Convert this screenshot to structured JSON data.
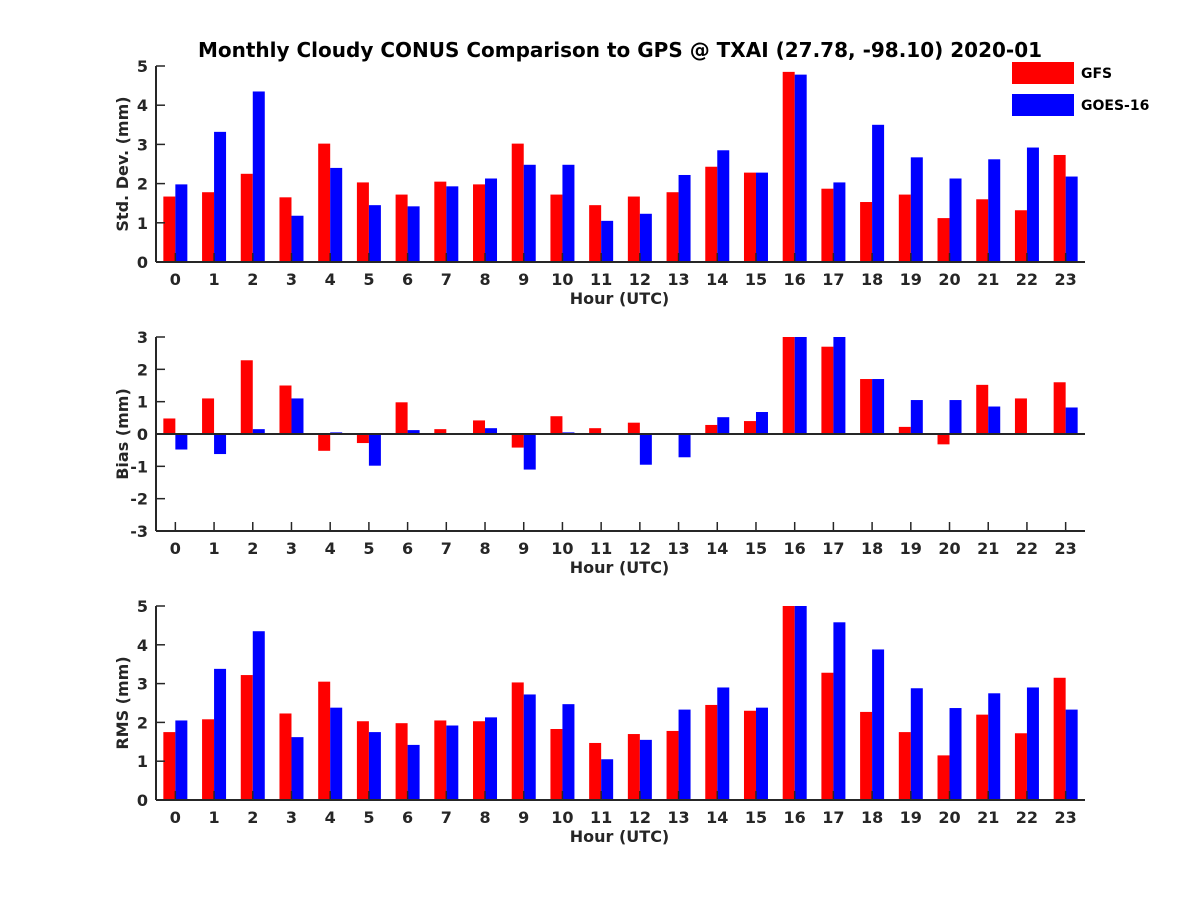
{
  "figure": {
    "title": "Monthly Cloudy CONUS Comparison to GPS @ TXAI (27.78, -98.10) 2020-01"
  },
  "legend": {
    "items": [
      {
        "label": "GFS",
        "color": "#ff0000"
      },
      {
        "label": "GOES-16",
        "color": "#0000ff"
      }
    ]
  },
  "chart_data": [
    {
      "type": "bar",
      "title": "Monthly Cloudy CONUS Comparison to GPS @ TXAI (27.78, -98.10) 2020-01",
      "xlabel": "Hour (UTC)",
      "ylabel": "Std. Dev. (mm)",
      "ylim": [
        0,
        5
      ],
      "yticks": [
        0,
        1,
        2,
        3,
        4,
        5
      ],
      "categories": [
        "0",
        "1",
        "2",
        "3",
        "4",
        "5",
        "6",
        "7",
        "8",
        "9",
        "10",
        "11",
        "12",
        "13",
        "14",
        "15",
        "16",
        "17",
        "18",
        "19",
        "20",
        "21",
        "22",
        "23"
      ],
      "series": [
        {
          "name": "GFS",
          "color": "#ff0000",
          "values": [
            1.67,
            1.78,
            2.25,
            1.65,
            3.02,
            2.03,
            1.72,
            2.05,
            1.98,
            3.02,
            1.72,
            1.45,
            1.67,
            1.78,
            2.43,
            2.28,
            4.85,
            1.87,
            1.53,
            1.72,
            1.12,
            1.6,
            1.32,
            2.73
          ]
        },
        {
          "name": "GOES-16",
          "color": "#0000ff",
          "values": [
            1.98,
            3.32,
            4.35,
            1.18,
            2.4,
            1.45,
            1.42,
            1.93,
            2.13,
            2.48,
            2.48,
            1.05,
            1.23,
            2.22,
            2.85,
            2.28,
            4.78,
            2.03,
            3.5,
            2.67,
            2.13,
            2.62,
            2.92,
            2.18
          ]
        }
      ]
    },
    {
      "type": "bar",
      "xlabel": "Hour (UTC)",
      "ylabel": "Bias (mm)",
      "ylim": [
        -3,
        3
      ],
      "yticks": [
        -3,
        -2,
        -1,
        0,
        1,
        2,
        3
      ],
      "categories": [
        "0",
        "1",
        "2",
        "3",
        "4",
        "5",
        "6",
        "7",
        "8",
        "9",
        "10",
        "11",
        "12",
        "13",
        "14",
        "15",
        "16",
        "17",
        "18",
        "19",
        "20",
        "21",
        "22",
        "23"
      ],
      "series": [
        {
          "name": "GFS",
          "color": "#ff0000",
          "values": [
            0.48,
            1.1,
            2.28,
            1.5,
            -0.52,
            -0.28,
            0.98,
            0.15,
            0.42,
            -0.42,
            0.55,
            0.18,
            0.35,
            0.0,
            0.28,
            0.4,
            3.0,
            2.7,
            1.7,
            0.22,
            -0.32,
            1.52,
            1.1,
            1.6
          ]
        },
        {
          "name": "GOES-16",
          "color": "#0000ff",
          "values": [
            -0.48,
            -0.62,
            0.15,
            1.1,
            0.05,
            -0.98,
            0.12,
            0.0,
            0.18,
            -1.1,
            0.05,
            0.0,
            -0.95,
            -0.72,
            0.52,
            0.68,
            3.0,
            3.0,
            1.7,
            1.05,
            1.05,
            0.85,
            0.03,
            0.82
          ]
        }
      ]
    },
    {
      "type": "bar",
      "xlabel": "Hour (UTC)",
      "ylabel": "RMS (mm)",
      "ylim": [
        0,
        5
      ],
      "yticks": [
        0,
        1,
        2,
        3,
        4,
        5
      ],
      "categories": [
        "0",
        "1",
        "2",
        "3",
        "4",
        "5",
        "6",
        "7",
        "8",
        "9",
        "10",
        "11",
        "12",
        "13",
        "14",
        "15",
        "16",
        "17",
        "18",
        "19",
        "20",
        "21",
        "22",
        "23"
      ],
      "series": [
        {
          "name": "GFS",
          "color": "#ff0000",
          "values": [
            1.75,
            2.08,
            3.22,
            2.23,
            3.05,
            2.03,
            1.98,
            2.05,
            2.03,
            3.03,
            1.83,
            1.47,
            1.7,
            1.78,
            2.45,
            2.3,
            5.0,
            3.28,
            2.27,
            1.75,
            1.15,
            2.2,
            1.72,
            3.15
          ]
        },
        {
          "name": "GOES-16",
          "color": "#0000ff",
          "values": [
            2.05,
            3.38,
            4.35,
            1.62,
            2.38,
            1.75,
            1.42,
            1.92,
            2.13,
            2.72,
            2.47,
            1.05,
            1.55,
            2.33,
            2.9,
            2.38,
            5.0,
            4.58,
            3.88,
            2.88,
            2.37,
            2.75,
            2.9,
            2.33
          ]
        }
      ]
    }
  ]
}
